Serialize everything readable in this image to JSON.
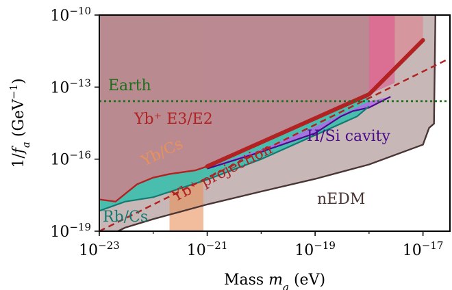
{
  "chart_data": {
    "type": "area",
    "xlabel": "Mass m_a (eV)",
    "ylabel": "1/f_a (GeV^-1)",
    "xscale": "log",
    "yscale": "log",
    "xlim": [
      1e-23,
      3.16e-17
    ],
    "ylim": [
      1e-19,
      1e-10
    ],
    "x_ticks": [
      {
        "value": 1e-23,
        "mantissa": "10",
        "exp": "−23"
      },
      {
        "value": 1e-21,
        "mantissa": "10",
        "exp": "−21"
      },
      {
        "value": 1e-19,
        "mantissa": "10",
        "exp": "−19"
      },
      {
        "value": 1e-17,
        "mantissa": "10",
        "exp": "−17"
      }
    ],
    "y_ticks": [
      {
        "value": 1e-19,
        "mantissa": "10",
        "exp": "−19"
      },
      {
        "value": 1e-16,
        "mantissa": "10",
        "exp": "−16"
      },
      {
        "value": 1e-13,
        "mantissa": "10",
        "exp": "−13"
      },
      {
        "value": 1e-10,
        "mantissa": "10",
        "exp": "−10"
      }
    ],
    "colors": {
      "nEDM": "#c7b8b7",
      "nEDM_edge": "#4a3535",
      "Yb_E3E2": "#e07a88",
      "Yb_E3E2_edge": "#b22222",
      "Yb_Cs": "#e8915a",
      "Rb_Cs": "#3bbfae",
      "Rb_Cs_edge": "#127a72",
      "HSi": "#b469e6",
      "HSi_edge": "#4b0a8a",
      "Earth": "#1a6e1a",
      "projection": "#b22222"
    },
    "series": [
      {
        "name": "nEDM",
        "label": "nEDM",
        "points": [
          [
            1e-23,
            4.2e-20
          ],
          [
            3e-23,
            1.4e-19
          ],
          [
            1e-22,
            3.2e-19
          ],
          [
            1e-21,
            1.3e-18
          ],
          [
            1e-20,
            4.5e-18
          ],
          [
            1e-19,
            1.5e-17
          ],
          [
            1e-18,
            6e-17
          ],
          [
            1e-17,
            4e-16
          ],
          [
            1.3e-17,
            2e-15
          ],
          [
            1.6e-17,
            3e-15
          ],
          [
            1.7e-17,
            1e-10
          ]
        ]
      },
      {
        "name": "Yb+ E3/E2",
        "label": "Yb⁺ E3/E2",
        "points": [
          [
            1e-23,
            2.1e-18
          ],
          [
            2e-23,
            1.7e-18
          ],
          [
            5e-23,
            9e-18
          ],
          [
            1e-22,
            1.7e-17
          ],
          [
            2e-22,
            2.4e-17
          ],
          [
            6e-22,
            3.4e-17
          ],
          [
            1e-21,
            5e-17
          ],
          [
            1e-20,
            5e-16
          ],
          [
            1e-19,
            5e-15
          ],
          [
            1e-18,
            5e-14
          ],
          [
            1e-17,
            9e-12
          ]
        ],
        "mass_window": [
          1e-23,
          1e-17
        ]
      },
      {
        "name": "Yb/Cs",
        "label": "Yb/Cs",
        "mass_window": [
          2e-22,
          8.5e-22
        ]
      },
      {
        "name": "Rb/Cs",
        "label": "Rb/Cs",
        "points": [
          [
            1e-23,
            7e-19
          ],
          [
            3e-23,
            1.7e-18
          ],
          [
            1e-22,
            2.6e-18
          ],
          [
            1e-21,
            1.4e-17
          ],
          [
            1e-20,
            1e-16
          ],
          [
            1e-19,
            1e-15
          ],
          [
            6e-19,
            6e-15
          ],
          [
            1e-18,
            1.6e-14
          ]
        ],
        "mass_window": [
          1e-23,
          1e-18
        ]
      },
      {
        "name": "H/Si cavity",
        "label": "H/Si cavity",
        "points": [
          [
            1e-21,
            4e-17
          ],
          [
            1e-20,
            2e-16
          ],
          [
            1e-19,
            1.2e-15
          ],
          [
            3e-19,
            6e-15
          ],
          [
            5e-19,
            1e-14
          ],
          [
            1e-18,
            1.4e-14
          ],
          [
            2.5e-18,
            4e-14
          ]
        ],
        "mass_window": [
          1e-21,
          2.5e-18
        ]
      },
      {
        "name": "Yb+ projection",
        "label": "Yb⁺ projection",
        "points": [
          [
            1e-23,
            1e-19
          ],
          [
            3e-17,
            1.5e-12
          ]
        ]
      },
      {
        "name": "Earth",
        "label": "Earth",
        "y": 2.6e-14
      }
    ]
  }
}
